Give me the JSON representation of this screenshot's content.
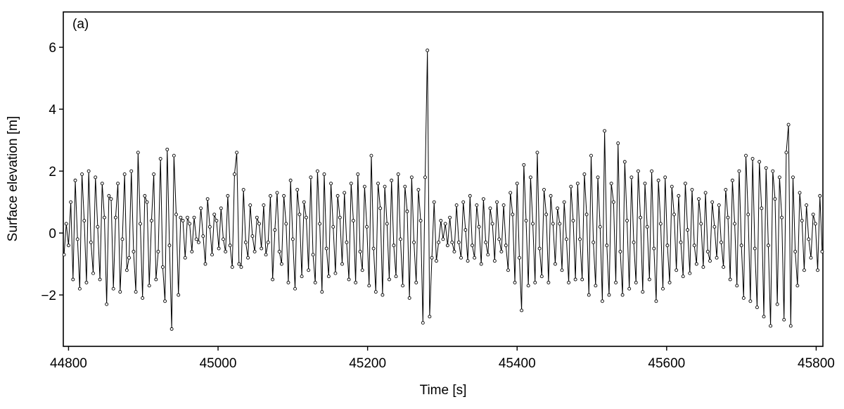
{
  "chart_data": {
    "type": "line",
    "annotation": "(a)",
    "x_label": "Time [s]",
    "y_label": "Surface elevation [m]",
    "color": "#000000",
    "marker": "open-circle",
    "x": [
      44794,
      44797,
      44800,
      44803,
      44806,
      44809,
      44812,
      44815,
      44818,
      44821,
      44824,
      44827,
      44830,
      44833,
      44836,
      44839,
      44842,
      44845,
      44848,
      44851,
      44854,
      44857,
      44860,
      44863,
      44866,
      44869,
      44872,
      44875,
      44878,
      44881,
      44884,
      44887,
      44890,
      44893,
      44896,
      44899,
      44902,
      44905,
      44908,
      44911,
      44914,
      44917,
      44920,
      44923,
      44926,
      44929,
      44932,
      44935,
      44938,
      44941,
      44944,
      44947,
      44950,
      44953,
      44956,
      44959,
      44962,
      44965,
      44968,
      44971,
      44974,
      44977,
      44980,
      44983,
      44986,
      44989,
      44992,
      44995,
      44998,
      45001,
      45004,
      45007,
      45010,
      45013,
      45016,
      45019,
      45022,
      45025,
      45028,
      45031,
      45034,
      45037,
      45040,
      45043,
      45046,
      45049,
      45052,
      45055,
      45058,
      45061,
      45064,
      45067,
      45070,
      45073,
      45076,
      45079,
      45082,
      45085,
      45088,
      45091,
      45094,
      45097,
      45100,
      45103,
      45106,
      45109,
      45112,
      45115,
      45118,
      45121,
      45124,
      45127,
      45130,
      45133,
      45136,
      45139,
      45142,
      45145,
      45148,
      45151,
      45154,
      45157,
      45160,
      45163,
      45166,
      45169,
      45172,
      45175,
      45178,
      45181,
      45184,
      45187,
      45190,
      45193,
      45196,
      45199,
      45202,
      45205,
      45208,
      45211,
      45214,
      45217,
      45220,
      45223,
      45226,
      45229,
      45232,
      45235,
      45238,
      45241,
      45244,
      45247,
      45250,
      45253,
      45256,
      45259,
      45262,
      45265,
      45268,
      45271,
      45274,
      45277,
      45280,
      45283,
      45286,
      45289,
      45292,
      45295,
      45298,
      45301,
      45304,
      45307,
      45310,
      45313,
      45316,
      45319,
      45322,
      45325,
      45328,
      45331,
      45334,
      45337,
      45340,
      45343,
      45346,
      45349,
      45352,
      45355,
      45358,
      45361,
      45364,
      45367,
      45370,
      45373,
      45376,
      45379,
      45382,
      45385,
      45388,
      45391,
      45394,
      45397,
      45400,
      45403,
      45406,
      45409,
      45412,
      45415,
      45418,
      45421,
      45424,
      45427,
      45430,
      45433,
      45436,
      45439,
      45442,
      45445,
      45448,
      45451,
      45454,
      45457,
      45460,
      45463,
      45466,
      45469,
      45472,
      45475,
      45478,
      45481,
      45484,
      45487,
      45490,
      45493,
      45496,
      45499,
      45502,
      45505,
      45508,
      45511,
      45514,
      45517,
      45520,
      45523,
      45526,
      45529,
      45532,
      45535,
      45538,
      45541,
      45544,
      45547,
      45550,
      45553,
      45556,
      45559,
      45562,
      45565,
      45568,
      45571,
      45574,
      45577,
      45580,
      45583,
      45586,
      45589,
      45592,
      45595,
      45598,
      45601,
      45604,
      45607,
      45610,
      45613,
      45616,
      45619,
      45622,
      45625,
      45628,
      45631,
      45634,
      45637,
      45640,
      45643,
      45646,
      45649,
      45652,
      45655,
      45658,
      45661,
      45664,
      45667,
      45670,
      45673,
      45676,
      45679,
      45682,
      45685,
      45688,
      45691,
      45694,
      45697,
      45700,
      45703,
      45706,
      45709,
      45712,
      45715,
      45718,
      45721,
      45724,
      45727,
      45730,
      45733,
      45736,
      45739,
      45742,
      45745,
      45748,
      45751,
      45754,
      45757,
      45760,
      45763,
      45766,
      45769,
      45772,
      45775,
      45778,
      45781,
      45784,
      45787,
      45790,
      45793,
      45796,
      45799,
      45802,
      45805,
      45808
    ],
    "values": [
      -0.7,
      0.3,
      -0.4,
      1.0,
      -1.5,
      1.7,
      -0.2,
      -1.8,
      1.9,
      0.4,
      -1.6,
      2.0,
      -0.3,
      -1.3,
      1.8,
      0.2,
      -1.5,
      1.6,
      0.5,
      -2.3,
      1.2,
      1.1,
      -1.8,
      0.5,
      1.6,
      -1.9,
      -0.2,
      1.9,
      -1.2,
      -0.8,
      2.0,
      -0.6,
      -1.9,
      2.6,
      0.3,
      -2.1,
      1.2,
      1.0,
      -1.7,
      0.4,
      1.9,
      -1.5,
      -0.6,
      2.4,
      -1.1,
      -2.2,
      2.7,
      -0.4,
      -3.1,
      2.5,
      0.6,
      -2.0,
      0.5,
      0.4,
      -0.8,
      0.5,
      0.3,
      -0.6,
      0.5,
      -0.2,
      -0.3,
      0.8,
      -0.1,
      -1.0,
      1.1,
      0.2,
      -0.7,
      0.6,
      0.4,
      -0.5,
      0.8,
      -0.2,
      -0.6,
      1.2,
      -0.4,
      -1.1,
      1.9,
      2.6,
      -1.0,
      -1.1,
      1.4,
      -0.3,
      -0.8,
      0.9,
      -0.1,
      -0.6,
      0.5,
      0.3,
      -0.5,
      0.9,
      -0.7,
      -0.3,
      1.2,
      -1.5,
      0.1,
      1.3,
      -0.6,
      -1.0,
      1.2,
      0.3,
      -1.6,
      1.7,
      -0.2,
      -1.8,
      1.4,
      0.6,
      -1.4,
      1.0,
      0.5,
      -1.2,
      1.8,
      -0.7,
      -1.6,
      2.0,
      0.3,
      -1.9,
      1.9,
      -0.5,
      -1.4,
      1.6,
      0.2,
      -1.3,
      1.2,
      0.5,
      -1.0,
      1.3,
      -0.3,
      -1.5,
      1.6,
      0.4,
      -1.6,
      1.9,
      -0.6,
      -1.2,
      1.5,
      0.2,
      -1.7,
      2.5,
      -0.5,
      -1.9,
      1.6,
      0.8,
      -2.0,
      1.5,
      0.3,
      -1.5,
      1.7,
      -0.4,
      -1.4,
      1.9,
      -0.2,
      -1.7,
      1.5,
      0.7,
      -2.1,
      1.8,
      -0.3,
      -1.6,
      1.4,
      0.4,
      -2.9,
      1.8,
      5.9,
      -2.7,
      -0.8,
      1.0,
      -0.9,
      -0.3,
      0.4,
      -0.2,
      0.3,
      -0.4,
      0.5,
      -0.3,
      -0.6,
      0.9,
      -0.3,
      -0.8,
      1.0,
      0.1,
      -0.9,
      1.2,
      -0.4,
      -0.8,
      0.9,
      0.2,
      -1.0,
      1.1,
      -0.3,
      -0.7,
      0.8,
      0.3,
      -0.9,
      1.0,
      -0.2,
      -0.6,
      0.9,
      -0.4,
      -1.2,
      1.3,
      0.6,
      -1.6,
      1.6,
      -0.8,
      -2.5,
      2.2,
      0.4,
      -1.7,
      1.8,
      0.3,
      -1.6,
      2.6,
      -0.5,
      -1.4,
      1.4,
      0.6,
      -1.6,
      1.2,
      0.3,
      -1.0,
      0.8,
      0.3,
      -1.2,
      1.0,
      -0.2,
      -1.6,
      1.5,
      0.4,
      -1.5,
      1.6,
      -0.2,
      -1.5,
      1.9,
      0.6,
      -2.0,
      2.5,
      -0.3,
      -1.7,
      1.8,
      0.2,
      -2.2,
      3.3,
      -0.4,
      -2.0,
      1.6,
      1.0,
      -1.6,
      2.9,
      -0.6,
      -2.0,
      2.3,
      0.4,
      -1.8,
      1.8,
      -0.3,
      -1.6,
      2.0,
      0.5,
      -1.9,
      1.6,
      0.2,
      -1.5,
      2.0,
      -0.5,
      -2.2,
      1.7,
      0.3,
      -1.8,
      1.8,
      -0.4,
      -1.6,
      1.5,
      0.6,
      -1.2,
      1.2,
      -0.3,
      -1.4,
      1.6,
      0.1,
      -1.3,
      1.4,
      -0.4,
      -1.0,
      1.1,
      0.3,
      -1.1,
      1.3,
      -0.6,
      -0.9,
      1.0,
      0.2,
      -0.8,
      0.9,
      -0.3,
      -1.1,
      1.4,
      0.5,
      -1.5,
      1.7,
      0.3,
      -1.7,
      2.0,
      -0.4,
      -2.1,
      2.5,
      0.6,
      -2.2,
      2.4,
      -0.5,
      -2.4,
      2.3,
      0.8,
      -2.7,
      2.1,
      -0.4,
      -3.0,
      2.0,
      1.1,
      -2.3,
      1.8,
      0.5,
      -2.8,
      2.6,
      3.5,
      -3.0,
      1.8,
      -0.6,
      -1.7,
      1.3,
      0.4,
      -1.2,
      0.9,
      -0.2,
      -0.8,
      0.6,
      0.3,
      -1.2,
      1.2,
      -0.6
    ],
    "xlim": [
      44793,
      45809
    ],
    "ylim": [
      -3.66,
      7.14
    ],
    "xticks": [
      44800,
      45000,
      45200,
      45400,
      45600,
      45800
    ],
    "yticks": [
      {
        "value": -2,
        "label": "−2"
      },
      0,
      2,
      4,
      6
    ],
    "grid": false
  }
}
